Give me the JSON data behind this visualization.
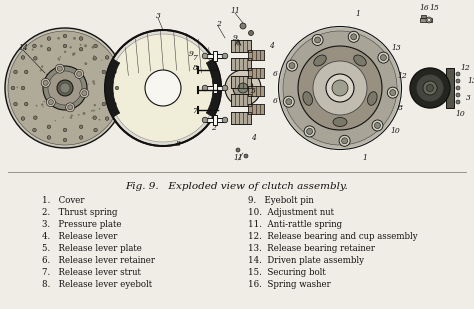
{
  "caption": "Fig. 9.   Exploded view of clutch assembly.",
  "bg_color": "#f0ede6",
  "text_color": "#1a1a1a",
  "legend_left": [
    "1.   Cover",
    "2.   Thrust spring",
    "3.   Pressure plate",
    "4.   Release lever",
    "5.   Release lever plate",
    "6.   Release lever retainer",
    "7.   Release lever strut",
    "8.   Release lever eyebolt"
  ],
  "legend_right": [
    "9.   Eyebolt pin",
    "10.  Adjustment nut",
    "11.  Anti-rattle spring",
    "12.  Release bearing and cup assembly",
    "13.  Release bearing retainer",
    "14.  Driven plate assembly",
    "15.  Securing bolt",
    "16.  Spring washer"
  ],
  "figsize": [
    4.74,
    3.09
  ],
  "dpi": 100
}
